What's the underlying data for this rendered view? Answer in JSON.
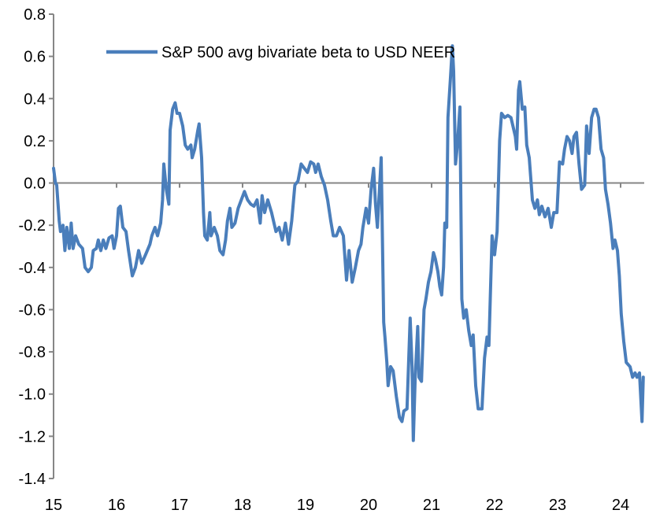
{
  "chart_data": {
    "type": "line",
    "title": "",
    "xlabel": "",
    "ylabel": "",
    "xlim": [
      15,
      24.375
    ],
    "ylim": [
      -1.4,
      0.8
    ],
    "x_ticks": [
      15,
      16,
      17,
      18,
      19,
      20,
      21,
      22,
      23,
      24
    ],
    "x_tick_labels": [
      "15",
      "16",
      "17",
      "18",
      "19",
      "20",
      "21",
      "22",
      "23",
      "24"
    ],
    "y_ticks": [
      0.8,
      0.6,
      0.4,
      0.2,
      0.0,
      -0.2,
      -0.4,
      -0.6,
      -0.8,
      -1.0,
      -1.2,
      -1.4
    ],
    "y_tick_labels": [
      "0.8",
      "0.6",
      "0.4",
      "0.2",
      "0.0",
      "-0.2",
      "-0.4",
      "-0.6",
      "-0.8",
      "-1.0",
      "-1.2",
      "-1.4"
    ],
    "grid": false,
    "legend_position": "top",
    "colors": {
      "series": "#4a7ebb",
      "axis": "#868686"
    },
    "series": [
      {
        "name": "S&P 500 avg bivariate beta to USD NEER",
        "points": [
          [
            15.0,
            0.07
          ],
          [
            15.03,
            0.0
          ],
          [
            15.05,
            -0.01
          ],
          [
            15.09,
            -0.18
          ],
          [
            15.11,
            -0.23
          ],
          [
            15.15,
            -0.2
          ],
          [
            15.18,
            -0.32
          ],
          [
            15.21,
            -0.21
          ],
          [
            15.25,
            -0.31
          ],
          [
            15.28,
            -0.19
          ],
          [
            15.31,
            -0.31
          ],
          [
            15.35,
            -0.25
          ],
          [
            15.4,
            -0.29
          ],
          [
            15.46,
            -0.31
          ],
          [
            15.5,
            -0.4
          ],
          [
            15.55,
            -0.42
          ],
          [
            15.6,
            -0.4
          ],
          [
            15.63,
            -0.32
          ],
          [
            15.68,
            -0.31
          ],
          [
            15.71,
            -0.27
          ],
          [
            15.75,
            -0.32
          ],
          [
            15.79,
            -0.27
          ],
          [
            15.83,
            -0.31
          ],
          [
            15.88,
            -0.26
          ],
          [
            15.93,
            -0.25
          ],
          [
            15.96,
            -0.31
          ],
          [
            16.0,
            -0.25
          ],
          [
            16.03,
            -0.12
          ],
          [
            16.06,
            -0.11
          ],
          [
            16.1,
            -0.21
          ],
          [
            16.15,
            -0.23
          ],
          [
            16.19,
            -0.32
          ],
          [
            16.25,
            -0.44
          ],
          [
            16.3,
            -0.4
          ],
          [
            16.35,
            -0.32
          ],
          [
            16.4,
            -0.38
          ],
          [
            16.46,
            -0.34
          ],
          [
            16.53,
            -0.29
          ],
          [
            16.56,
            -0.25
          ],
          [
            16.61,
            -0.21
          ],
          [
            16.65,
            -0.25
          ],
          [
            16.7,
            -0.19
          ],
          [
            16.73,
            -0.08
          ],
          [
            16.75,
            0.09
          ],
          [
            16.79,
            -0.03
          ],
          [
            16.83,
            -0.1
          ],
          [
            16.85,
            0.25
          ],
          [
            16.89,
            0.35
          ],
          [
            16.93,
            0.38
          ],
          [
            16.96,
            0.33
          ],
          [
            17.0,
            0.33
          ],
          [
            17.05,
            0.27
          ],
          [
            17.09,
            0.18
          ],
          [
            17.13,
            0.16
          ],
          [
            17.18,
            0.18
          ],
          [
            17.2,
            0.12
          ],
          [
            17.24,
            0.16
          ],
          [
            17.29,
            0.25
          ],
          [
            17.31,
            0.28
          ],
          [
            17.35,
            0.12
          ],
          [
            17.38,
            -0.14
          ],
          [
            17.4,
            -0.25
          ],
          [
            17.44,
            -0.27
          ],
          [
            17.48,
            -0.14
          ],
          [
            17.5,
            -0.25
          ],
          [
            17.55,
            -0.21
          ],
          [
            17.6,
            -0.25
          ],
          [
            17.64,
            -0.32
          ],
          [
            17.69,
            -0.34
          ],
          [
            17.73,
            -0.27
          ],
          [
            17.76,
            -0.18
          ],
          [
            17.8,
            -0.12
          ],
          [
            17.83,
            -0.21
          ],
          [
            17.88,
            -0.19
          ],
          [
            17.93,
            -0.12
          ],
          [
            17.98,
            -0.08
          ],
          [
            18.03,
            -0.04
          ],
          [
            18.08,
            -0.08
          ],
          [
            18.13,
            -0.1
          ],
          [
            18.18,
            -0.11
          ],
          [
            18.23,
            -0.08
          ],
          [
            18.28,
            -0.19
          ],
          [
            18.31,
            -0.06
          ],
          [
            18.35,
            -0.14
          ],
          [
            18.4,
            -0.08
          ],
          [
            18.46,
            -0.14
          ],
          [
            18.53,
            -0.23
          ],
          [
            18.58,
            -0.21
          ],
          [
            18.63,
            -0.27
          ],
          [
            18.68,
            -0.19
          ],
          [
            18.73,
            -0.29
          ],
          [
            18.78,
            -0.18
          ],
          [
            18.83,
            -0.01
          ],
          [
            18.88,
            0.01
          ],
          [
            18.93,
            0.09
          ],
          [
            18.98,
            0.07
          ],
          [
            19.03,
            0.05
          ],
          [
            19.08,
            0.1
          ],
          [
            19.13,
            0.09
          ],
          [
            19.16,
            0.05
          ],
          [
            19.2,
            0.09
          ],
          [
            19.25,
            0.03
          ],
          [
            19.3,
            -0.01
          ],
          [
            19.35,
            -0.08
          ],
          [
            19.4,
            -0.18
          ],
          [
            19.44,
            -0.25
          ],
          [
            19.49,
            -0.25
          ],
          [
            19.54,
            -0.21
          ],
          [
            19.6,
            -0.25
          ],
          [
            19.65,
            -0.46
          ],
          [
            19.69,
            -0.32
          ],
          [
            19.74,
            -0.47
          ],
          [
            19.79,
            -0.4
          ],
          [
            19.84,
            -0.32
          ],
          [
            19.88,
            -0.29
          ],
          [
            19.91,
            -0.21
          ],
          [
            19.96,
            -0.12
          ],
          [
            20.0,
            -0.19
          ],
          [
            20.04,
            -0.03
          ],
          [
            20.08,
            0.07
          ],
          [
            20.11,
            -0.1
          ],
          [
            20.14,
            -0.21
          ],
          [
            20.16,
            -0.1
          ],
          [
            20.2,
            0.12
          ],
          [
            20.24,
            -0.66
          ],
          [
            20.26,
            -0.73
          ],
          [
            20.29,
            -0.85
          ],
          [
            20.31,
            -0.96
          ],
          [
            20.35,
            -0.87
          ],
          [
            20.39,
            -0.89
          ],
          [
            20.44,
            -1.01
          ],
          [
            20.49,
            -1.11
          ],
          [
            20.53,
            -1.13
          ],
          [
            20.56,
            -1.08
          ],
          [
            20.61,
            -1.07
          ],
          [
            20.66,
            -0.64
          ],
          [
            20.69,
            -0.87
          ],
          [
            20.71,
            -1.22
          ],
          [
            20.74,
            -0.92
          ],
          [
            20.78,
            -0.68
          ],
          [
            20.8,
            -0.92
          ],
          [
            20.84,
            -0.94
          ],
          [
            20.88,
            -0.6
          ],
          [
            20.91,
            -0.55
          ],
          [
            20.95,
            -0.47
          ],
          [
            20.99,
            -0.42
          ],
          [
            21.03,
            -0.33
          ],
          [
            21.06,
            -0.36
          ],
          [
            21.1,
            -0.42
          ],
          [
            21.13,
            -0.49
          ],
          [
            21.16,
            -0.53
          ],
          [
            21.19,
            -0.4
          ],
          [
            21.21,
            -0.19
          ],
          [
            21.24,
            -0.21
          ],
          [
            21.26,
            0.31
          ],
          [
            21.3,
            0.5
          ],
          [
            21.33,
            0.65
          ],
          [
            21.35,
            0.53
          ],
          [
            21.38,
            0.09
          ],
          [
            21.41,
            0.18
          ],
          [
            21.45,
            0.36
          ],
          [
            21.48,
            -0.55
          ],
          [
            21.51,
            -0.64
          ],
          [
            21.55,
            -0.6
          ],
          [
            21.59,
            -0.7
          ],
          [
            21.63,
            -0.77
          ],
          [
            21.66,
            -0.72
          ],
          [
            21.7,
            -0.96
          ],
          [
            21.74,
            -1.07
          ],
          [
            21.8,
            -1.07
          ],
          [
            21.84,
            -0.83
          ],
          [
            21.88,
            -0.73
          ],
          [
            21.91,
            -0.77
          ],
          [
            21.96,
            -0.25
          ],
          [
            22.0,
            -0.34
          ],
          [
            22.04,
            -0.23
          ],
          [
            22.08,
            0.2
          ],
          [
            22.11,
            0.33
          ],
          [
            22.16,
            0.31
          ],
          [
            22.21,
            0.32
          ],
          [
            22.26,
            0.31
          ],
          [
            22.33,
            0.22
          ],
          [
            22.35,
            0.16
          ],
          [
            22.38,
            0.44
          ],
          [
            22.4,
            0.48
          ],
          [
            22.44,
            0.35
          ],
          [
            22.48,
            0.36
          ],
          [
            22.51,
            0.18
          ],
          [
            22.55,
            0.12
          ],
          [
            22.6,
            -0.08
          ],
          [
            22.64,
            -0.12
          ],
          [
            22.68,
            -0.08
          ],
          [
            22.71,
            -0.15
          ],
          [
            22.75,
            -0.11
          ],
          [
            22.8,
            -0.16
          ],
          [
            22.85,
            -0.12
          ],
          [
            22.9,
            -0.21
          ],
          [
            22.94,
            -0.14
          ],
          [
            22.99,
            -0.14
          ],
          [
            23.03,
            0.1
          ],
          [
            23.08,
            0.09
          ],
          [
            23.11,
            0.16
          ],
          [
            23.15,
            0.22
          ],
          [
            23.19,
            0.2
          ],
          [
            23.23,
            0.14
          ],
          [
            23.26,
            0.22
          ],
          [
            23.3,
            0.24
          ],
          [
            23.34,
            0.09
          ],
          [
            23.38,
            -0.03
          ],
          [
            23.43,
            -0.01
          ],
          [
            23.46,
            0.27
          ],
          [
            23.5,
            0.14
          ],
          [
            23.54,
            0.31
          ],
          [
            23.58,
            0.35
          ],
          [
            23.61,
            0.35
          ],
          [
            23.65,
            0.31
          ],
          [
            23.69,
            0.16
          ],
          [
            23.73,
            0.12
          ],
          [
            23.76,
            -0.03
          ],
          [
            23.8,
            -0.1
          ],
          [
            23.84,
            -0.19
          ],
          [
            23.88,
            -0.31
          ],
          [
            23.91,
            -0.27
          ],
          [
            23.95,
            -0.32
          ],
          [
            23.98,
            -0.44
          ],
          [
            24.01,
            -0.62
          ],
          [
            24.05,
            -0.75
          ],
          [
            24.09,
            -0.85
          ],
          [
            24.15,
            -0.87
          ],
          [
            24.19,
            -0.92
          ],
          [
            24.23,
            -0.9
          ],
          [
            24.26,
            -0.92
          ],
          [
            24.3,
            -0.9
          ],
          [
            24.34,
            -1.13
          ],
          [
            24.36,
            -0.92
          ]
        ]
      }
    ]
  }
}
